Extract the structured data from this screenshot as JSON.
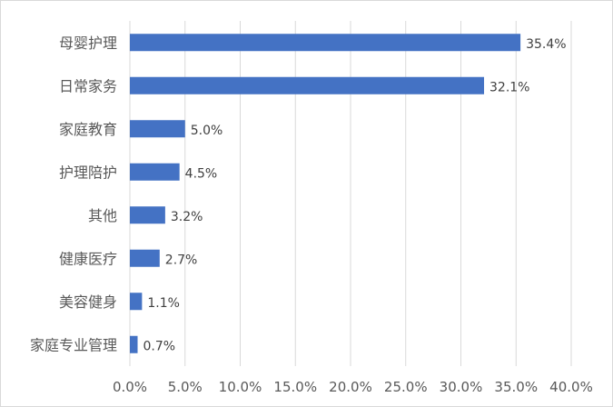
{
  "chart_data": {
    "type": "bar",
    "orientation": "horizontal",
    "categories": [
      "母婴护理",
      "日常家务",
      "家庭教育",
      "护理陪护",
      "其他",
      "健康医疗",
      "美容健身",
      "家庭专业管理"
    ],
    "values": [
      35.4,
      32.1,
      5.0,
      4.5,
      3.2,
      2.7,
      1.1,
      0.7
    ],
    "value_labels": [
      "35.4%",
      "32.1%",
      "5.0%",
      "4.5%",
      "3.2%",
      "2.7%",
      "1.1%",
      "0.7%"
    ],
    "x_ticks": [
      0,
      5,
      10,
      15,
      20,
      25,
      30,
      35,
      40
    ],
    "x_tick_labels": [
      "0.0%",
      "5.0%",
      "10.0%",
      "15.0%",
      "20.0%",
      "25.0%",
      "30.0%",
      "35.0%",
      "40.0%"
    ],
    "xlim": [
      0,
      40
    ],
    "grid": true,
    "legend": "none",
    "bar_color": "#4472c4",
    "title": "",
    "xlabel": "",
    "ylabel": ""
  }
}
